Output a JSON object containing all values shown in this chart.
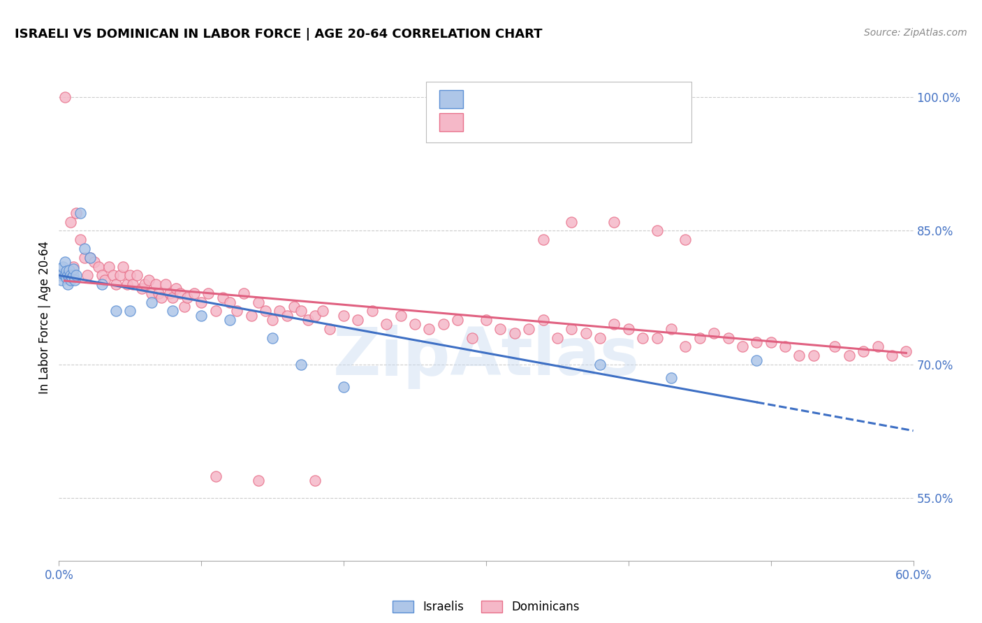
{
  "title": "ISRAELI VS DOMINICAN IN LABOR FORCE | AGE 20-64 CORRELATION CHART",
  "source": "Source: ZipAtlas.com",
  "ylabel": "In Labor Force | Age 20-64",
  "xlim": [
    0.0,
    0.6
  ],
  "ylim": [
    0.48,
    1.025
  ],
  "xticks": [
    0.0,
    0.1,
    0.2,
    0.3,
    0.4,
    0.5,
    0.6
  ],
  "xticklabels": [
    "0.0%",
    "",
    "",
    "",
    "",
    "",
    "60.0%"
  ],
  "yticks_right": [
    1.0,
    0.85,
    0.7,
    0.55
  ],
  "yticklabels_right": [
    "100.0%",
    "85.0%",
    "70.0%",
    "55.0%"
  ],
  "israeli_fill": "#aec6e8",
  "israeli_edge": "#5b8fd4",
  "dominican_fill": "#f5b8c8",
  "dominican_edge": "#e8708a",
  "israeli_line_color": "#3d6fc4",
  "dominican_line_color": "#e06080",
  "watermark": "ZipAtlas",
  "background_color": "#ffffff",
  "grid_color": "#cccccc",
  "legend_text_color": "#333333",
  "legend_r_color_israeli": "#4472c4",
  "legend_r_color_dominican": "#e8708a",
  "israeli_x": [
    0.001,
    0.002,
    0.002,
    0.003,
    0.003,
    0.004,
    0.004,
    0.005,
    0.005,
    0.006,
    0.006,
    0.007,
    0.007,
    0.008,
    0.008,
    0.009,
    0.01,
    0.01,
    0.011,
    0.012,
    0.015,
    0.018,
    0.022,
    0.03,
    0.04,
    0.05,
    0.065,
    0.08,
    0.1,
    0.12,
    0.15,
    0.17,
    0.2,
    0.38,
    0.43,
    0.49
  ],
  "israeli_y": [
    0.8,
    0.808,
    0.795,
    0.802,
    0.81,
    0.8,
    0.815,
    0.797,
    0.805,
    0.8,
    0.79,
    0.798,
    0.806,
    0.795,
    0.8,
    0.798,
    0.8,
    0.807,
    0.795,
    0.8,
    0.87,
    0.83,
    0.82,
    0.79,
    0.76,
    0.76,
    0.77,
    0.76,
    0.755,
    0.75,
    0.73,
    0.7,
    0.675,
    0.7,
    0.685,
    0.705
  ],
  "dominican_x": [
    0.004,
    0.008,
    0.01,
    0.012,
    0.015,
    0.018,
    0.02,
    0.022,
    0.025,
    0.028,
    0.03,
    0.032,
    0.035,
    0.038,
    0.04,
    0.043,
    0.045,
    0.048,
    0.05,
    0.052,
    0.055,
    0.058,
    0.06,
    0.063,
    0.065,
    0.068,
    0.07,
    0.072,
    0.075,
    0.078,
    0.08,
    0.082,
    0.085,
    0.088,
    0.09,
    0.095,
    0.1,
    0.105,
    0.11,
    0.115,
    0.12,
    0.125,
    0.13,
    0.135,
    0.14,
    0.145,
    0.15,
    0.155,
    0.16,
    0.165,
    0.17,
    0.175,
    0.18,
    0.185,
    0.19,
    0.2,
    0.21,
    0.22,
    0.23,
    0.24,
    0.25,
    0.26,
    0.27,
    0.28,
    0.29,
    0.3,
    0.31,
    0.32,
    0.33,
    0.34,
    0.35,
    0.36,
    0.37,
    0.38,
    0.39,
    0.4,
    0.41,
    0.42,
    0.43,
    0.44,
    0.45,
    0.46,
    0.47,
    0.48,
    0.49,
    0.5,
    0.51,
    0.52,
    0.53,
    0.545,
    0.555,
    0.565,
    0.575,
    0.585,
    0.595,
    0.34,
    0.42,
    0.44,
    0.39,
    0.36,
    0.14,
    0.18,
    0.11
  ],
  "dominican_y": [
    1.0,
    0.86,
    0.81,
    0.87,
    0.84,
    0.82,
    0.8,
    0.82,
    0.815,
    0.81,
    0.8,
    0.795,
    0.81,
    0.8,
    0.79,
    0.8,
    0.81,
    0.79,
    0.8,
    0.79,
    0.8,
    0.785,
    0.79,
    0.795,
    0.78,
    0.79,
    0.78,
    0.775,
    0.79,
    0.78,
    0.775,
    0.785,
    0.78,
    0.765,
    0.775,
    0.78,
    0.77,
    0.78,
    0.76,
    0.775,
    0.77,
    0.76,
    0.78,
    0.755,
    0.77,
    0.76,
    0.75,
    0.76,
    0.755,
    0.765,
    0.76,
    0.75,
    0.755,
    0.76,
    0.74,
    0.755,
    0.75,
    0.76,
    0.745,
    0.755,
    0.745,
    0.74,
    0.745,
    0.75,
    0.73,
    0.75,
    0.74,
    0.735,
    0.74,
    0.75,
    0.73,
    0.74,
    0.735,
    0.73,
    0.745,
    0.74,
    0.73,
    0.73,
    0.74,
    0.72,
    0.73,
    0.735,
    0.73,
    0.72,
    0.725,
    0.725,
    0.72,
    0.71,
    0.71,
    0.72,
    0.71,
    0.715,
    0.72,
    0.71,
    0.715,
    0.84,
    0.85,
    0.84,
    0.86,
    0.86,
    0.57,
    0.57,
    0.575
  ]
}
